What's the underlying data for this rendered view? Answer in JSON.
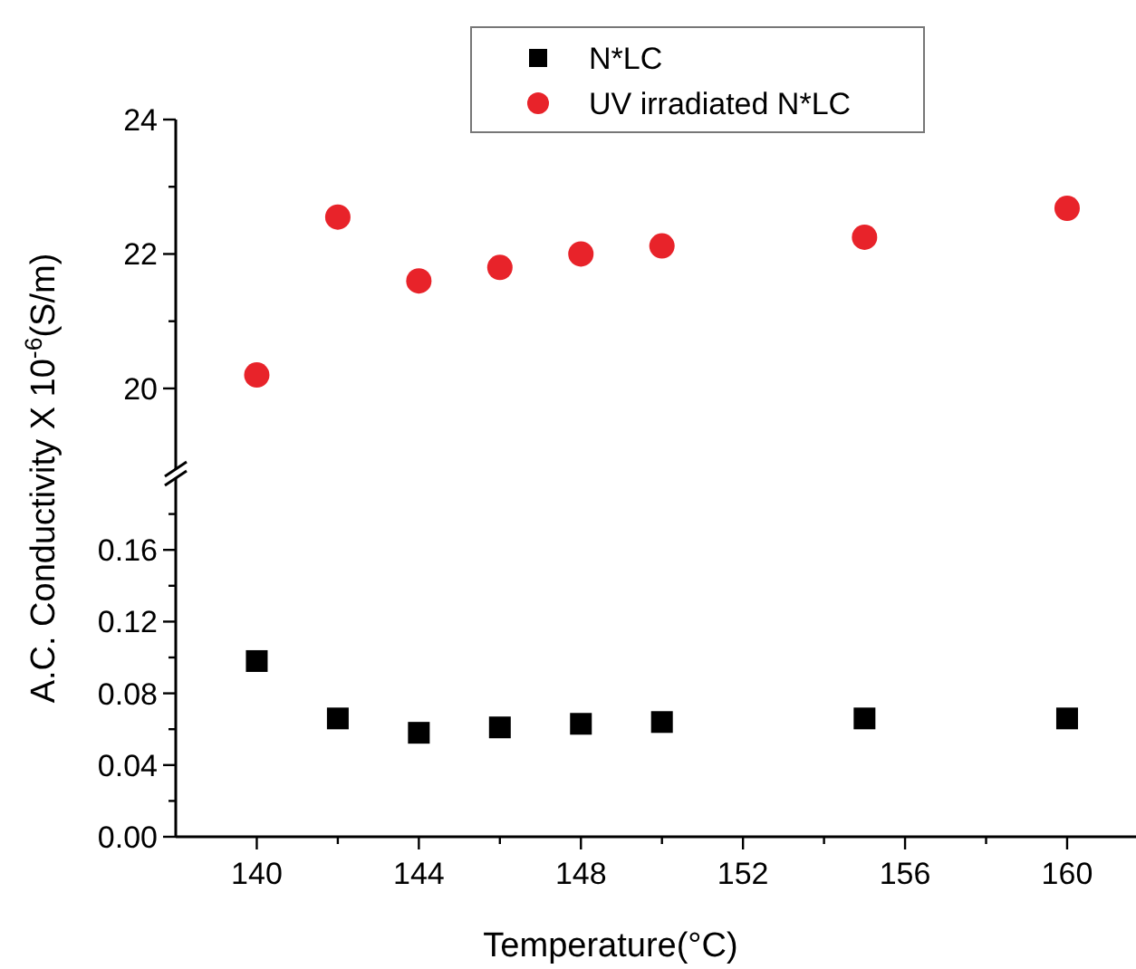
{
  "chart_data": [
    {
      "type": "scatter",
      "x": [
        140,
        142,
        144,
        146,
        148,
        150,
        155,
        160
      ],
      "series": [
        {
          "name": "UV irradiated N*LC",
          "color": "#e8232a",
          "values": [
            20.2,
            22.55,
            21.6,
            21.8,
            22.0,
            22.12,
            22.25,
            22.68
          ]
        }
      ],
      "xlim": [
        138,
        161.7
      ],
      "ylim": [
        18.8,
        24
      ],
      "yticks": [
        20,
        {
          "value": 21,
          "label": null
        },
        22,
        {
          "value": 23,
          "label": null
        },
        24
      ],
      "tick_labels": "y",
      "marker": "circle",
      "legend": "top"
    },
    {
      "type": "scatter",
      "x": [
        140,
        142,
        144,
        146,
        148,
        150,
        155,
        160
      ],
      "series": [
        {
          "name": "N*LC",
          "color": "#000000",
          "values": [
            0.098,
            0.066,
            0.058,
            0.061,
            0.063,
            0.064,
            0.066,
            0.066
          ]
        }
      ],
      "xlim": [
        138,
        161.7
      ],
      "ylim": [
        0,
        0.2
      ],
      "xticks": [
        140,
        {
          "value": 142,
          "label": null
        },
        144,
        {
          "value": 146,
          "label": null
        },
        148,
        {
          "value": 150,
          "label": null
        },
        152,
        {
          "value": 154,
          "label": null
        },
        156,
        {
          "value": 158,
          "label": null
        },
        160
      ],
      "yticks": [
        {
          "value": 0,
          "label": "0.00"
        },
        {
          "value": 0.02,
          "label": null
        },
        0.04,
        {
          "value": 0.06,
          "label": null
        },
        0.08,
        {
          "value": 0.1,
          "label": null
        },
        0.12,
        {
          "value": 0.14,
          "label": null
        },
        0.16,
        {
          "value": 0.18,
          "label": null
        }
      ],
      "xlabel": "Temperature(°C)",
      "ylabel": "A.C. Conductivity X 10$^{-6}$(S/m)",
      "marker": "square",
      "legend": "top"
    }
  ]
}
